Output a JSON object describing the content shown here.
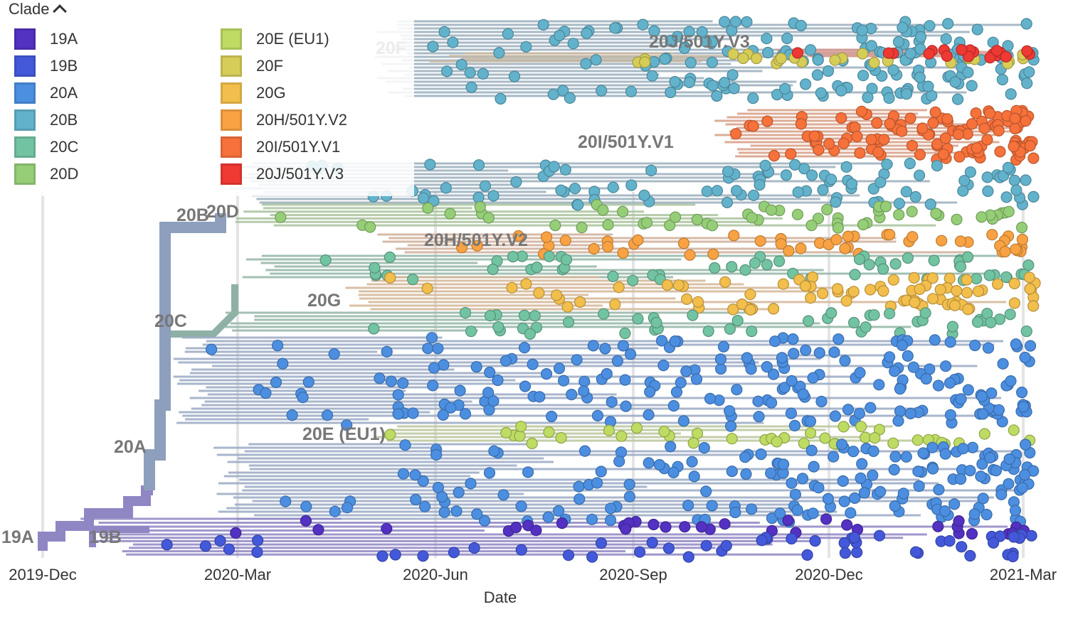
{
  "legend": {
    "title": "Clade",
    "toggle_icon": "chevron-up-icon",
    "items": [
      {
        "label": "19A",
        "color": "#5331C2"
      },
      {
        "label": "19B",
        "color": "#4459DA"
      },
      {
        "label": "20A",
        "color": "#4C8FE1"
      },
      {
        "label": "20B",
        "color": "#63B2CC"
      },
      {
        "label": "20C",
        "color": "#72C3A2"
      },
      {
        "label": "20D",
        "color": "#95CE77"
      },
      {
        "label": "20E (EU1)",
        "color": "#BEDB63"
      },
      {
        "label": "20F",
        "color": "#D6CD58"
      },
      {
        "label": "20G",
        "color": "#F2BE4C"
      },
      {
        "label": "20H/501Y.V2",
        "color": "#F9A243"
      },
      {
        "label": "20I/501Y.V1",
        "color": "#F7713B"
      },
      {
        "label": "20J/501Y.V3",
        "color": "#EF3933"
      }
    ]
  },
  "axis": {
    "title": "Date",
    "ticks": [
      "2019-Dec",
      "2020-Mar",
      "2020-Jun",
      "2020-Sep",
      "2020-Dec",
      "2021-Mar"
    ]
  },
  "clade_labels": [
    "19A",
    "19B",
    "20A",
    "20B",
    "20C",
    "20D",
    "20E (EU1)",
    "20F",
    "20G",
    "20H/501Y.V2",
    "20I/501Y.V1",
    "20J/501Y.V3"
  ]
}
